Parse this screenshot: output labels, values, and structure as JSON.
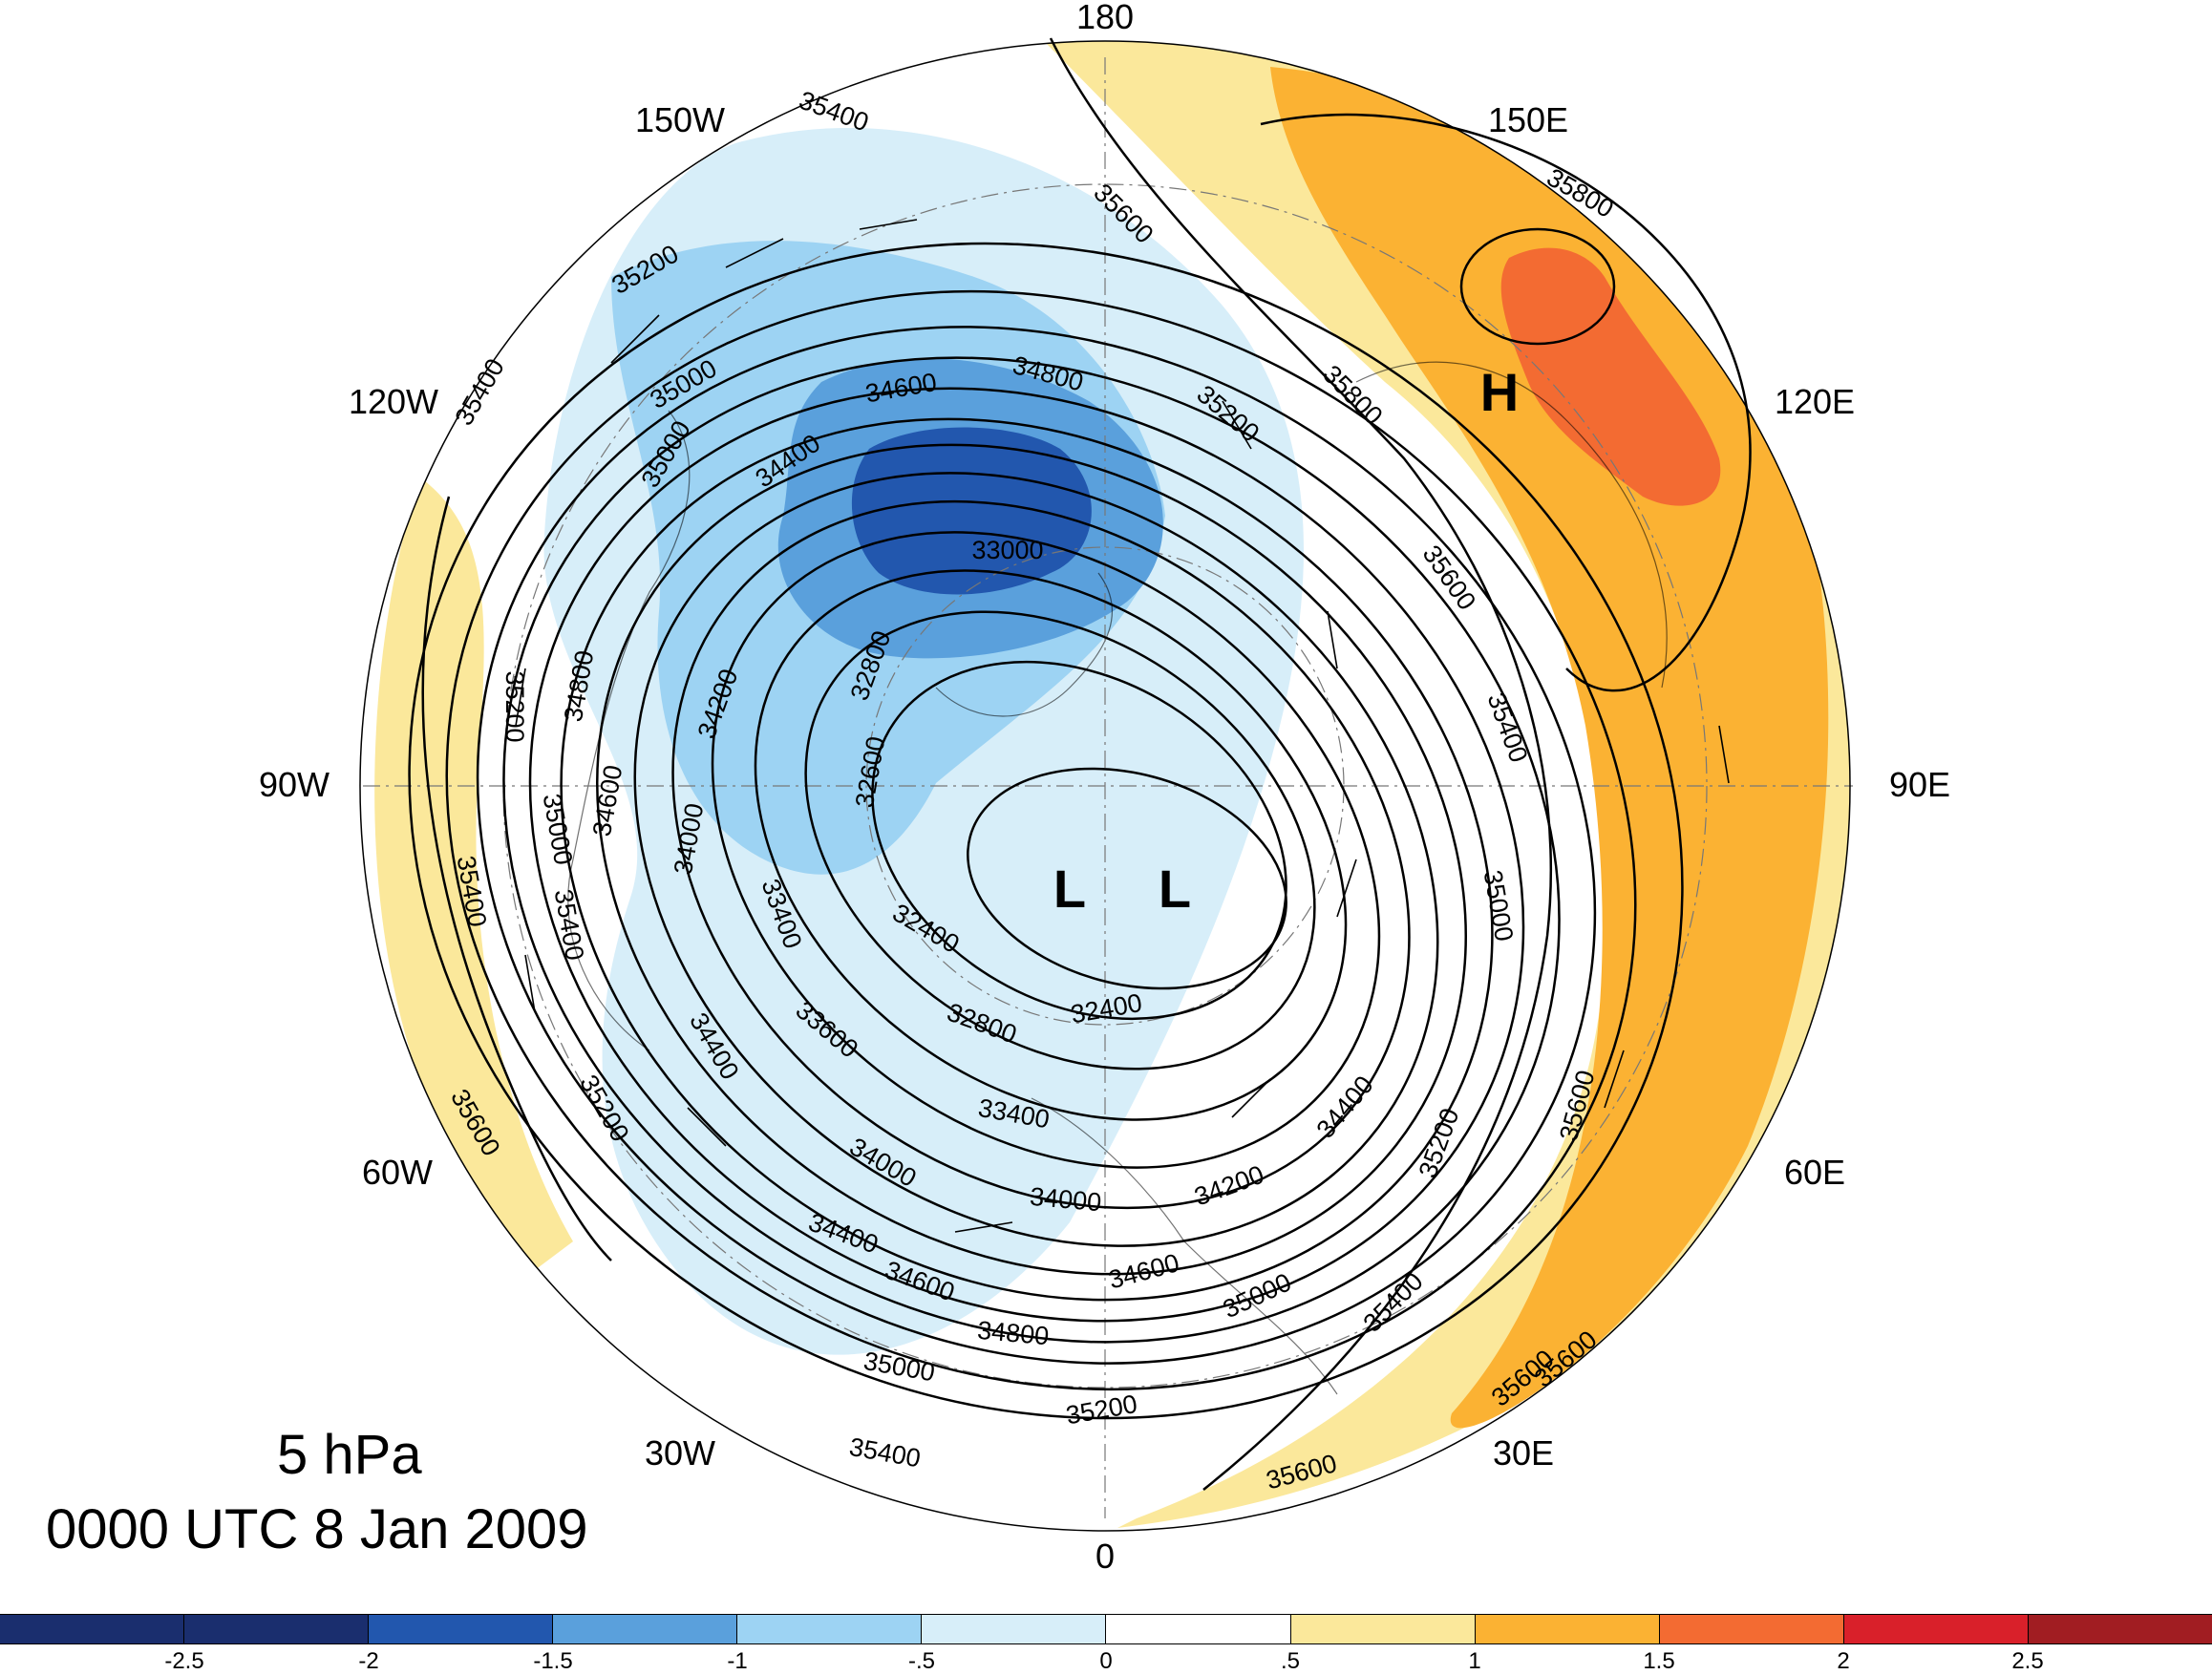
{
  "title": {
    "level": "5 hPa",
    "time": "0000 UTC 8 Jan 2009"
  },
  "longitude_labels": [
    "180",
    "150E",
    "120E",
    "90E",
    "60E",
    "30E",
    "0",
    "30W",
    "60W",
    "90W",
    "120W",
    "150W"
  ],
  "pressure_centers": [
    {
      "letter": "H",
      "type": "high"
    },
    {
      "letter": "L",
      "type": "low"
    },
    {
      "letter": "L",
      "type": "low"
    }
  ],
  "contour_labels": [
    "35400",
    "35200",
    "35000",
    "35400",
    "35600",
    "35800",
    "35800",
    "35200",
    "34800",
    "34600",
    "34400",
    "33000",
    "32800",
    "34200",
    "34000",
    "35000",
    "35200",
    "34800",
    "34600",
    "35000",
    "35400",
    "35400",
    "35600",
    "35200",
    "34400",
    "33600",
    "34000",
    "32600",
    "33400",
    "32400",
    "32400",
    "32800",
    "33400",
    "34000",
    "34200",
    "34400",
    "34600",
    "34800",
    "35000",
    "35200",
    "35400",
    "35600",
    "35600",
    "35600",
    "35400",
    "35000",
    "35600",
    "35200",
    "35400",
    "35600",
    "34400",
    "34600",
    "35000"
  ],
  "colorbar": {
    "tick_labels": [
      "-2.5",
      "-2",
      "-1.5",
      "-1",
      "-.5",
      "0",
      ".5",
      "1",
      "1.5",
      "2",
      "2.5"
    ],
    "colors": [
      "#1a2e6e",
      "#2257ae",
      "#5aa0dc",
      "#9dd3f3",
      "#d7eef9",
      "#ffffff",
      "#fbe89b",
      "#fbb233",
      "#f36b32",
      "#d9202a",
      "#a11d22"
    ]
  }
}
